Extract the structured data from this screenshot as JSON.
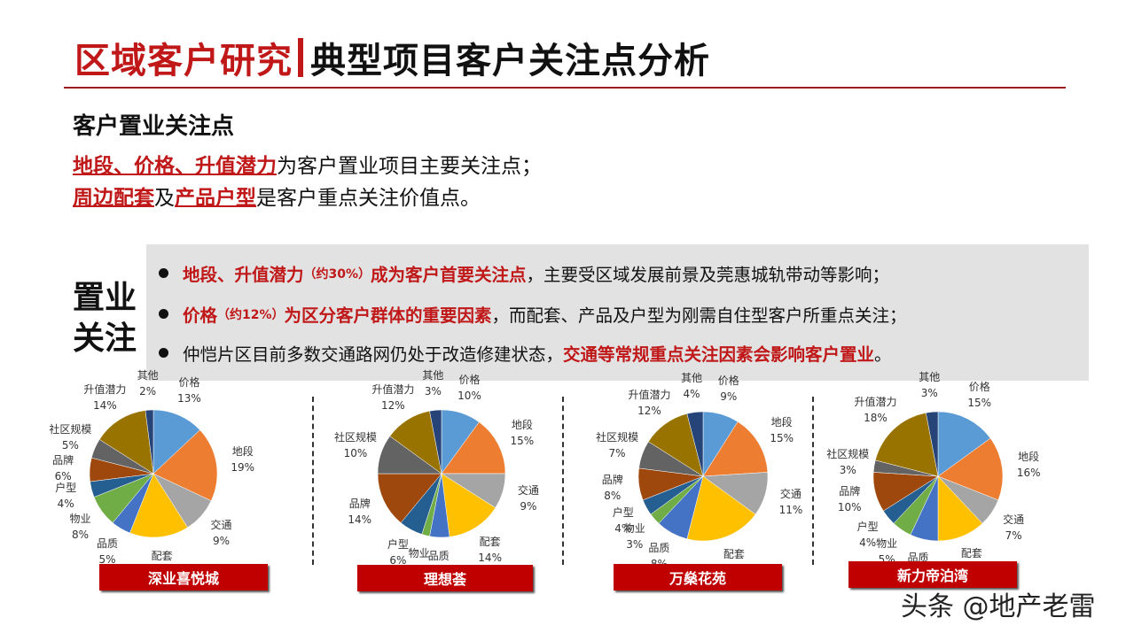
{
  "header": {
    "title_part1": "区域客户研究",
    "title_part2": "典型项目客户关注点分析"
  },
  "section": {
    "subhead": "客户置业关注点",
    "line1_highlight": "地段、价格、升值潜力",
    "line1_rest": "为客户置业项目主要关注点；",
    "line2_highlight1": "周边配套",
    "line2_mid": "及",
    "line2_highlight2": "产品户型",
    "line2_rest": "是客户重点关注价值点。"
  },
  "focus_box": {
    "side_label_1": "置业",
    "side_label_2": "关注",
    "bullets": [
      {
        "red_a": "地段、升值潜力",
        "small": "（约30%）",
        "red_b": "成为客户首要关注点",
        "rest": "，主要受区域发展前景及莞惠城轨带动等影响；"
      },
      {
        "red_a": "价格",
        "small": "（约12%）",
        "red_b": "为区分客户群体的重要因素",
        "rest": "，而配套、产品及户型为刚需自住型客户所重点关注；"
      },
      {
        "plain": "仲恺片区目前多数交通路网仍处于改造修建状态，",
        "red": "交通等常规重点关注因素会影响客户置业",
        "end": "。"
      }
    ]
  },
  "colors": {
    "价格": "#5b9bd5",
    "地段": "#ed7d31",
    "交通": "#a5a5a5",
    "配套": "#ffc000",
    "品质": "#4472c4",
    "物业": "#70ad47",
    "户型": "#255e91",
    "品牌": "#9e480e",
    "社区规模": "#636363",
    "升值潜力": "#997300",
    "其他": "#264478",
    "accent_red": "#c00000"
  },
  "chart_data": [
    {
      "type": "pie",
      "title": "深业喜悦城",
      "categories": [
        "价格",
        "地段",
        "交通",
        "配套",
        "品质",
        "物业",
        "户型",
        "品牌",
        "社区规模",
        "升值潜力",
        "其他"
      ],
      "values": [
        13,
        19,
        9,
        15,
        5,
        8,
        4,
        6,
        5,
        14,
        2
      ]
    },
    {
      "type": "pie",
      "title": "理想荟",
      "categories": [
        "价格",
        "地段",
        "交通",
        "配套",
        "品质",
        "物业",
        "户型",
        "品牌",
        "社区规模",
        "升值潜力",
        "其他"
      ],
      "values": [
        10,
        15,
        9,
        14,
        5,
        2,
        6,
        14,
        10,
        12,
        3
      ]
    },
    {
      "type": "pie",
      "title": "万燊花苑",
      "categories": [
        "价格",
        "地段",
        "交通",
        "配套",
        "品质",
        "物业",
        "户型",
        "品牌",
        "社区规模",
        "升值潜力",
        "其他"
      ],
      "values": [
        9,
        15,
        11,
        19,
        8,
        3,
        4,
        8,
        7,
        12,
        4
      ]
    },
    {
      "type": "pie",
      "title": "新力帝泊湾",
      "categories": [
        "价格",
        "地段",
        "交通",
        "配套",
        "品质",
        "物业",
        "户型",
        "品牌",
        "社区规模",
        "升值潜力",
        "其他"
      ],
      "values": [
        15,
        16,
        7,
        12,
        7,
        5,
        4,
        10,
        3,
        18,
        3
      ]
    }
  ],
  "watermark": "头条 @地产老雷"
}
